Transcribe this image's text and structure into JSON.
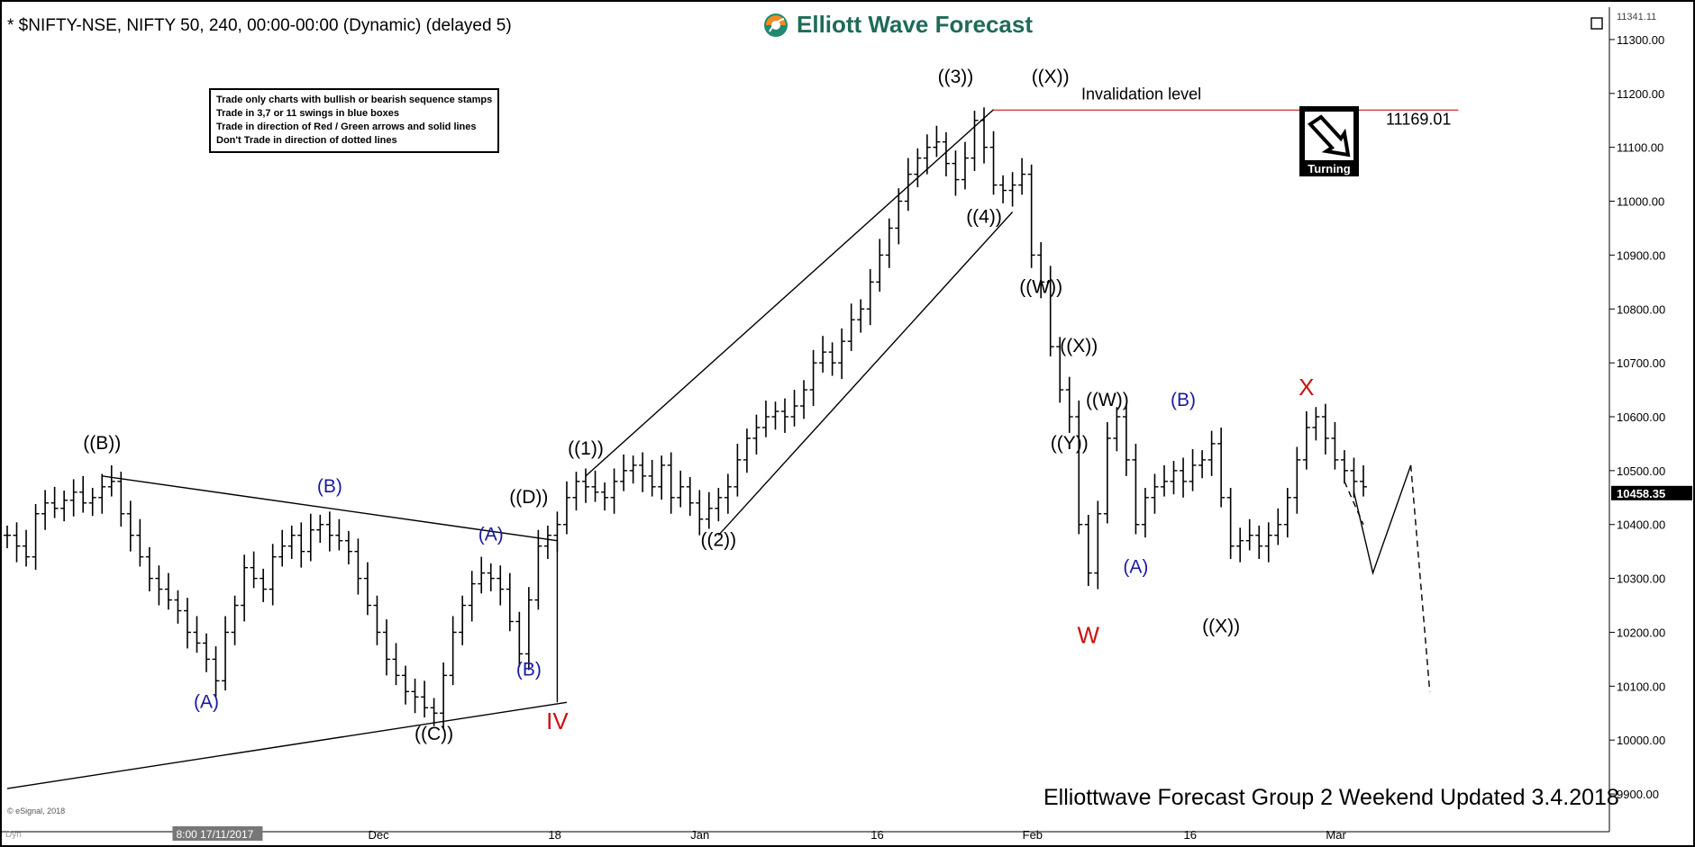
{
  "header": {
    "title": "* $NIFTY-NSE, NIFTY 50, 240, 00:00-00:00 (Dynamic) (delayed 5)"
  },
  "logo": {
    "text": "Elliott Wave Forecast",
    "icon": "globe-logo-icon"
  },
  "rules": [
    "Trade only charts with bullish or bearish sequence stamps",
    "Trade in 3,7 or 11 swings in blue boxes",
    "Trade in direction of Red / Green arrows and solid lines",
    "Don't Trade in direction of dotted lines"
  ],
  "footer": "Elliottwave Forecast Group 2 Weekend Updated 3.4.2018",
  "esignal": "© eSignal, 2018",
  "dyn_label": "Dyn",
  "turning": {
    "label": "Turning",
    "icon": "turning-down-arrow-icon"
  },
  "colors": {
    "blue_labels": "#1a1aa0",
    "red_labels": "#cc1111",
    "invalidation": "#d43b3b",
    "black": "#000000"
  },
  "chart_data": {
    "type": "line",
    "style": "ohlc-bars",
    "ylim": [
      9850,
      11360
    ],
    "y_ticks": [
      9900,
      10000,
      10100,
      10200,
      10300,
      10400,
      10500,
      10600,
      10700,
      10800,
      10900,
      11000,
      11100,
      11200,
      11300
    ],
    "y_tick_labels": [
      "9900.00",
      "10000.00",
      "10100.00",
      "10200.00",
      "10300.00",
      "10400.00",
      "10500.00",
      "10600.00",
      "10700.00",
      "10800.00",
      "10900.00",
      "11000.00",
      "11100.00",
      "11200.00",
      "11300.00"
    ],
    "top_price_label": "11341.11",
    "last_price": 10458.35,
    "last_price_label": "10458.35",
    "x_tick_labels": [
      "8:00 17/11/2017",
      "Dec",
      "18",
      "Jan",
      "16",
      "Feb",
      "16",
      "Mar"
    ],
    "x_tick_index": [
      18,
      39,
      58,
      73,
      92,
      108,
      125,
      140
    ],
    "invalidation": {
      "label": "Invalidation level",
      "value": 11169.01,
      "value_label": "11169.01",
      "from_index": 104,
      "to_index": 153
    },
    "closes": [
      10380,
      10360,
      10340,
      10420,
      10440,
      10430,
      10445,
      10460,
      10440,
      10450,
      10470,
      10480,
      10420,
      10380,
      10340,
      10300,
      10280,
      10260,
      10240,
      10200,
      10180,
      10150,
      10110,
      10200,
      10250,
      10320,
      10300,
      10280,
      10340,
      10360,
      10380,
      10350,
      10390,
      10400,
      10380,
      10370,
      10350,
      10300,
      10250,
      10200,
      10150,
      10120,
      10090,
      10080,
      10060,
      10050,
      10120,
      10200,
      10250,
      10290,
      10310,
      10300,
      10280,
      10220,
      10160,
      10260,
      10360,
      10380,
      10400,
      10450,
      10480,
      10470,
      10460,
      10450,
      10480,
      10500,
      10510,
      10490,
      10470,
      10510,
      10450,
      10470,
      10440,
      10410,
      10430,
      10450,
      10470,
      10520,
      10560,
      10580,
      10600,
      10610,
      10600,
      10620,
      10650,
      10700,
      10720,
      10700,
      10740,
      10780,
      10800,
      10850,
      10900,
      10950,
      11000,
      11050,
      11080,
      11100,
      11110,
      11070,
      11040,
      11080,
      11150,
      11100,
      11030,
      11020,
      11030,
      11050,
      10900,
      10850,
      10730,
      10650,
      10600,
      10400,
      10310,
      10420,
      10560,
      10600,
      10520,
      10400,
      10450,
      10470,
      10480,
      10500,
      10480,
      10510,
      10520,
      10550,
      10450,
      10360,
      10370,
      10380,
      10360,
      10380,
      10400,
      10450,
      10520,
      10580,
      10600,
      10560,
      10520,
      10500,
      10480,
      10470
    ],
    "wave_labels": [
      {
        "text": "((B))",
        "x": 10,
        "y": 10540,
        "color": "black"
      },
      {
        "text": "(B)",
        "x": 34,
        "y": 10460,
        "color": "blue"
      },
      {
        "text": "(A)",
        "x": 21,
        "y": 10060,
        "color": "blue"
      },
      {
        "text": "((C))",
        "x": 45,
        "y": 10000,
        "color": "black"
      },
      {
        "text": "(A)",
        "x": 51,
        "y": 10370,
        "color": "blue"
      },
      {
        "text": "(B)",
        "x": 55,
        "y": 10120,
        "color": "blue"
      },
      {
        "text": "((D))",
        "x": 55,
        "y": 10440,
        "color": "black"
      },
      {
        "text": "IV",
        "x": 58,
        "y": 10020,
        "color": "red"
      },
      {
        "text": "((1))",
        "x": 61,
        "y": 10530,
        "color": "black"
      },
      {
        "text": "((2))",
        "x": 75,
        "y": 10360,
        "color": "black"
      },
      {
        "text": "((3))",
        "x": 100,
        "y": 11220,
        "color": "black"
      },
      {
        "text": "((4))",
        "x": 103,
        "y": 10960,
        "color": "black"
      },
      {
        "text": "((X))",
        "x": 110,
        "y": 11220,
        "color": "black"
      },
      {
        "text": "((W))",
        "x": 109,
        "y": 10830,
        "color": "black"
      },
      {
        "text": "((X))",
        "x": 113,
        "y": 10720,
        "color": "black"
      },
      {
        "text": "((W))",
        "x": 116,
        "y": 10620,
        "color": "black"
      },
      {
        "text": "((Y))",
        "x": 112,
        "y": 10540,
        "color": "black"
      },
      {
        "text": "W",
        "x": 114,
        "y": 10180,
        "color": "red"
      },
      {
        "text": "(A)",
        "x": 119,
        "y": 10310,
        "color": "blue"
      },
      {
        "text": "(B)",
        "x": 124,
        "y": 10620,
        "color": "blue"
      },
      {
        "text": "((X))",
        "x": 128,
        "y": 10200,
        "color": "black"
      },
      {
        "text": "X",
        "x": 137,
        "y": 10640,
        "color": "red"
      }
    ],
    "trendlines": [
      {
        "points": [
          [
            10,
            10490
          ],
          [
            58,
            10370
          ]
        ],
        "style": "solid"
      },
      {
        "points": [
          [
            0,
            9910
          ],
          [
            59,
            10070
          ]
        ],
        "style": "solid"
      },
      {
        "points": [
          [
            58,
            10070
          ],
          [
            58,
            10370
          ]
        ],
        "style": "solid"
      },
      {
        "points": [
          [
            61,
            10490
          ],
          [
            104,
            11170
          ]
        ],
        "style": "solid"
      },
      {
        "points": [
          [
            75,
            10380
          ],
          [
            106,
            10980
          ]
        ],
        "style": "solid"
      },
      {
        "points": [
          [
            142,
            10460
          ],
          [
            144,
            10310
          ],
          [
            148,
            10510
          ]
        ],
        "style": "solid"
      },
      {
        "points": [
          [
            148,
            10510
          ],
          [
            150,
            10090
          ]
        ],
        "style": "dashed"
      },
      {
        "points": [
          [
            141,
            10480
          ],
          [
            143,
            10400
          ]
        ],
        "style": "dashed"
      }
    ]
  }
}
